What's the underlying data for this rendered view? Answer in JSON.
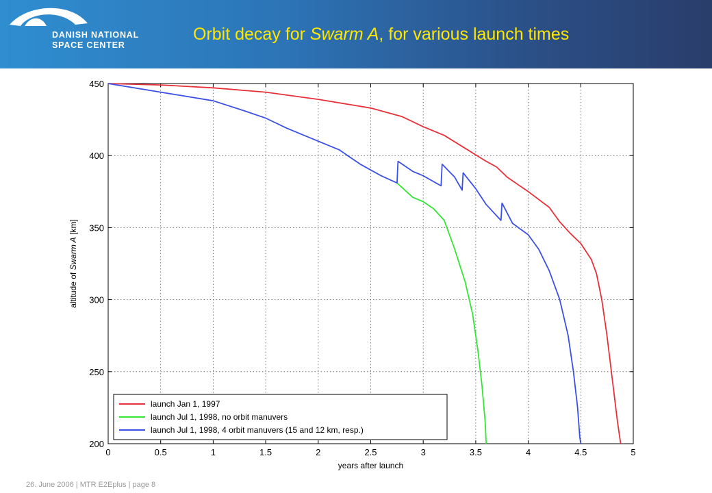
{
  "header": {
    "logo_line1": "DANISH NATIONAL",
    "logo_line2": "SPACE CENTER",
    "title_prefix": "Orbit decay for ",
    "title_italic": "Swarm A",
    "title_suffix": ", for various launch times"
  },
  "footer": {
    "text": "26. June  2006 | MTR E2Eplus | page 8"
  },
  "chart_data": {
    "type": "line",
    "title": "",
    "xlabel": "years after launch",
    "ylabel_prefix": "altitude of ",
    "ylabel_italic": "Swarm A",
    "ylabel_suffix": " [km]",
    "xlim": [
      0,
      5
    ],
    "ylim": [
      200,
      450
    ],
    "xticks": [
      0,
      0.5,
      1,
      1.5,
      2,
      2.5,
      3,
      3.5,
      4,
      4.5,
      5
    ],
    "xtick_labels": [
      "0",
      "0.5",
      "1",
      "1.5",
      "2",
      "2.5",
      "3",
      "3.5",
      "4",
      "4.5",
      "5"
    ],
    "yticks": [
      200,
      250,
      300,
      350,
      400,
      450
    ],
    "ytick_labels": [
      "200",
      "250",
      "300",
      "350",
      "400",
      "450"
    ],
    "grid": true,
    "legend_position": "bottom-left",
    "series": [
      {
        "name": "launch Jan 1, 1997",
        "color": "#e8303a",
        "points": [
          [
            0,
            450
          ],
          [
            0.5,
            449
          ],
          [
            1,
            447
          ],
          [
            1.5,
            444
          ],
          [
            2,
            439
          ],
          [
            2.5,
            433
          ],
          [
            2.8,
            427
          ],
          [
            3,
            420
          ],
          [
            3.2,
            414
          ],
          [
            3.4,
            405
          ],
          [
            3.6,
            396
          ],
          [
            3.7,
            392
          ],
          [
            3.8,
            385
          ],
          [
            4,
            375
          ],
          [
            4.2,
            364
          ],
          [
            4.3,
            354
          ],
          [
            4.4,
            346
          ],
          [
            4.5,
            339
          ],
          [
            4.6,
            328
          ],
          [
            4.65,
            318
          ],
          [
            4.7,
            300
          ],
          [
            4.75,
            275
          ],
          [
            4.8,
            245
          ],
          [
            4.85,
            215
          ],
          [
            4.88,
            200
          ]
        ]
      },
      {
        "name": "launch Jul 1, 1998, no orbit manuvers",
        "color": "#33e633",
        "points": [
          [
            2.75,
            381
          ],
          [
            2.9,
            371
          ],
          [
            3.0,
            368
          ],
          [
            3.1,
            363
          ],
          [
            3.2,
            355
          ],
          [
            3.3,
            335
          ],
          [
            3.4,
            312
          ],
          [
            3.47,
            290
          ],
          [
            3.52,
            265
          ],
          [
            3.56,
            240
          ],
          [
            3.59,
            215
          ],
          [
            3.6,
            200
          ]
        ]
      },
      {
        "name": "launch Jul 1, 1998, 4 orbit manuvers (15 and 12 km, resp.)",
        "color": "#3a4fe6",
        "points": [
          [
            0,
            450
          ],
          [
            0.5,
            444
          ],
          [
            1,
            438
          ],
          [
            1.3,
            431
          ],
          [
            1.5,
            426
          ],
          [
            1.7,
            419
          ],
          [
            2,
            410
          ],
          [
            2.2,
            404
          ],
          [
            2.4,
            394
          ],
          [
            2.6,
            386
          ],
          [
            2.75,
            381
          ],
          [
            2.76,
            396
          ],
          [
            2.9,
            389
          ],
          [
            3.0,
            386
          ],
          [
            3.17,
            379
          ],
          [
            3.18,
            394
          ],
          [
            3.3,
            385
          ],
          [
            3.37,
            376
          ],
          [
            3.38,
            388
          ],
          [
            3.5,
            377
          ],
          [
            3.6,
            366
          ],
          [
            3.74,
            355
          ],
          [
            3.75,
            367
          ],
          [
            3.85,
            353
          ],
          [
            4.0,
            345
          ],
          [
            4.1,
            335
          ],
          [
            4.2,
            320
          ],
          [
            4.3,
            300
          ],
          [
            4.38,
            275
          ],
          [
            4.43,
            250
          ],
          [
            4.47,
            225
          ],
          [
            4.49,
            205
          ],
          [
            4.5,
            200
          ]
        ]
      }
    ]
  }
}
